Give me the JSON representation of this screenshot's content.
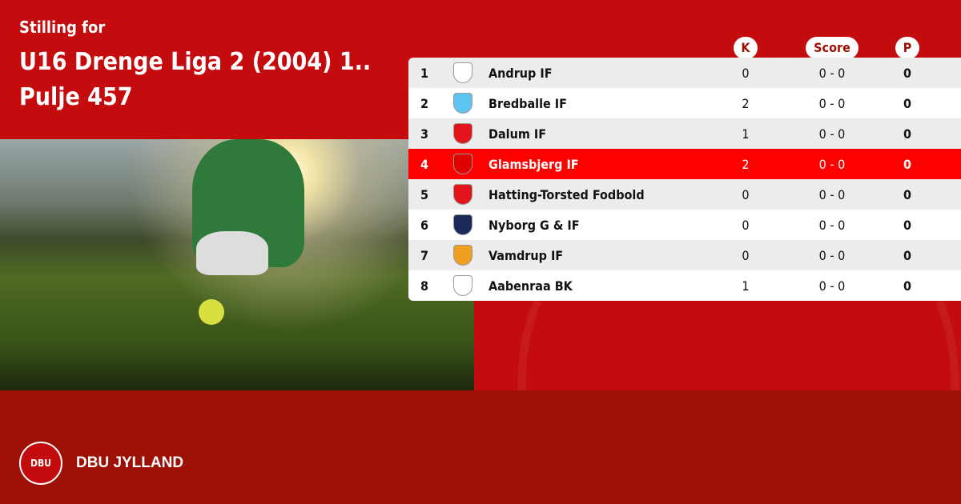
{
  "header": {
    "subtitle": "Stilling for",
    "title_line1": "U16 Drenge Liga 2 (2004) 1..",
    "title_line2": "Pulje 457"
  },
  "columns": {
    "k": "K",
    "score": "Score",
    "p": "P"
  },
  "rows": [
    {
      "pos": "1",
      "team": "Andrup IF",
      "k": "0",
      "score": "0 - 0",
      "p": "0",
      "logo_color": "#ffffff",
      "highlight": false
    },
    {
      "pos": "2",
      "team": "Bredballe IF",
      "k": "2",
      "score": "0 - 0",
      "p": "0",
      "logo_color": "#5bc4ef",
      "highlight": false
    },
    {
      "pos": "3",
      "team": "Dalum IF",
      "k": "1",
      "score": "0 - 0",
      "p": "0",
      "logo_color": "#e3141b",
      "highlight": false
    },
    {
      "pos": "4",
      "team": "Glamsbjerg IF",
      "k": "2",
      "score": "0 - 0",
      "p": "0",
      "logo_color": "#e00000",
      "highlight": true
    },
    {
      "pos": "5",
      "team": "Hatting-Torsted Fodbold",
      "k": "0",
      "score": "0 - 0",
      "p": "0",
      "logo_color": "#e3141b",
      "highlight": false
    },
    {
      "pos": "6",
      "team": "Nyborg G & IF",
      "k": "0",
      "score": "0 - 0",
      "p": "0",
      "logo_color": "#1c2a5a",
      "highlight": false
    },
    {
      "pos": "7",
      "team": "Vamdrup IF",
      "k": "0",
      "score": "0 - 0",
      "p": "0",
      "logo_color": "#f0a020",
      "highlight": false
    },
    {
      "pos": "8",
      "team": "Aabenraa BK",
      "k": "1",
      "score": "0 - 0",
      "p": "0",
      "logo_color": "#ffffff",
      "highlight": false
    }
  ],
  "footer": {
    "brand": "DBU JYLLAND",
    "logo_text": "DBU"
  },
  "colors": {
    "primary": "#c40c0f",
    "footer": "#9c1006",
    "highlight": "#ff0000"
  }
}
